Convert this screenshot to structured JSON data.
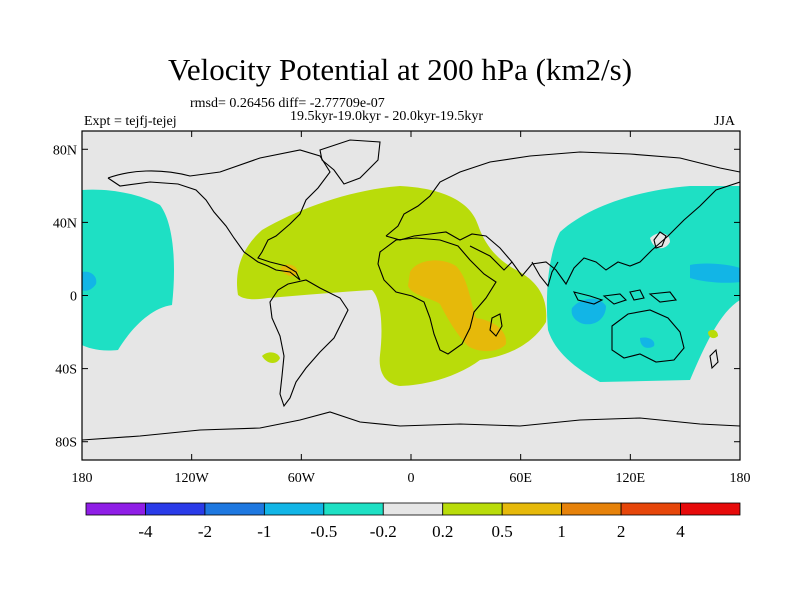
{
  "figure": {
    "title": "Velocity Potential at 200 hPa (km2/s)",
    "stats": "rmsd= 0.26456 diff= -2.77709e-07",
    "period": "19.5kyr-19.0kyr - 20.0kyr-19.5kyr",
    "experiment": "Expt = tejfj-tejej",
    "season": "JJA"
  },
  "axes": {
    "lon_ticks": [
      "180",
      "120W",
      "60W",
      "0",
      "60E",
      "120E",
      "180"
    ],
    "lon_values": [
      -180,
      -120,
      -60,
      0,
      60,
      120,
      180
    ],
    "lat_ticks": [
      "80N",
      "40N",
      "0",
      "40S",
      "80S"
    ],
    "lat_values": [
      80,
      40,
      0,
      -40,
      -80
    ],
    "lon_range": [
      -180,
      180
    ],
    "lat_range": [
      -90,
      90
    ]
  },
  "colorbar": {
    "labels": [
      "-4",
      "-2",
      "-1",
      "-0.5",
      "-0.2",
      "0.2",
      "0.5",
      "1",
      "2",
      "4"
    ],
    "colors": [
      "#8f1ee6",
      "#2a3be8",
      "#1e78e0",
      "#12b5e6",
      "#1ee0c4",
      "#e6e6e6",
      "#b9dc0a",
      "#e6b90a",
      "#e6820a",
      "#e6460a",
      "#e60a0a"
    ]
  },
  "regions": [
    {
      "name": "west-pacific-negative",
      "level": "-0.5 to -0.2",
      "color": "#1ee0c4"
    },
    {
      "name": "atlantic-africa-positive",
      "level": "0.2 to 0.5",
      "color": "#b9dc0a"
    },
    {
      "name": "africa-core",
      "level": "0.5 to 1",
      "color": "#e6b90a"
    },
    {
      "name": "indonesia-minimum",
      "level": "-1 to -0.5",
      "color": "#12b5e6"
    }
  ]
}
